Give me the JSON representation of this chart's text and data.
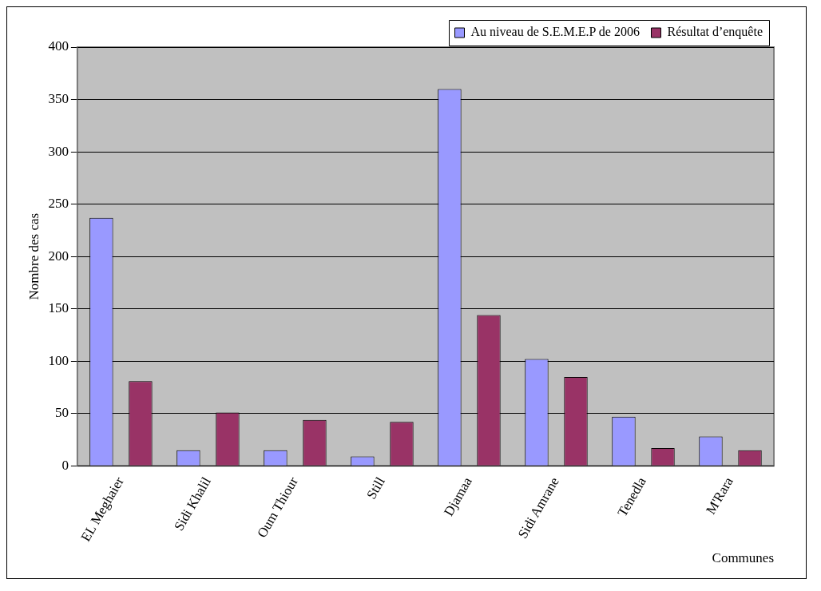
{
  "chart_data": {
    "type": "bar",
    "xlabel": "Communes",
    "ylabel": "Nombre des cas",
    "categories": [
      "EL Meghaier",
      "Sidi Khalil",
      "Oum Thiour",
      "Still",
      "Djamaa",
      "Sidi Amrane",
      "Tenedla",
      "M'Rara"
    ],
    "series": [
      {
        "name": "Au niveau de S.E.M.E.P de 2006",
        "color": "#9999ff",
        "values": [
          237,
          15,
          15,
          9,
          360,
          102,
          47,
          28
        ]
      },
      {
        "name": "Résultat d’enquête",
        "color": "#993366",
        "values": [
          81,
          51,
          44,
          42,
          144,
          85,
          17,
          15
        ]
      }
    ],
    "ylim": [
      0,
      400
    ],
    "yticks": [
      0,
      50,
      100,
      150,
      200,
      250,
      300,
      350,
      400
    ],
    "grid": "y",
    "legend": "top right"
  }
}
